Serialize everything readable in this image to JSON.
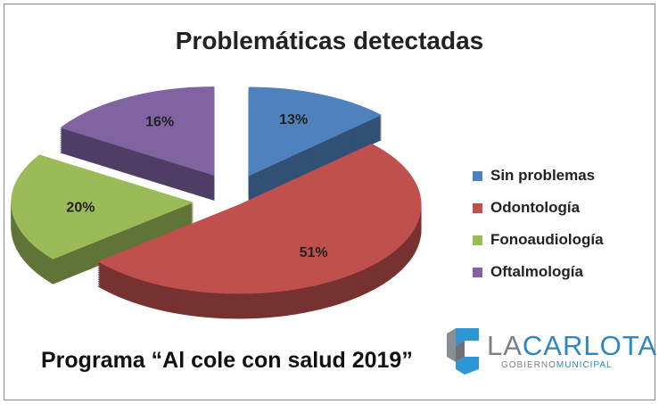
{
  "chart_data": {
    "type": "pie",
    "title": "Problemáticas detectadas",
    "categories": [
      "Sin problemas",
      "Odontología",
      "Fonoaudiología",
      "Oftalmología"
    ],
    "values": [
      13,
      51,
      20,
      16
    ],
    "labels": [
      "13%",
      "51%",
      "20%",
      "16%"
    ],
    "colors": [
      "#4f81bd",
      "#c0504d",
      "#9bbb59",
      "#8064a2"
    ],
    "legend_position": "right"
  },
  "footer": "Programa “Al cole con salud 2019”",
  "logo": {
    "name_a": "LA",
    "name_b": "CARLOTA",
    "sub_a": "GOBIERNO",
    "sub_b": "MUNICIPAL"
  }
}
